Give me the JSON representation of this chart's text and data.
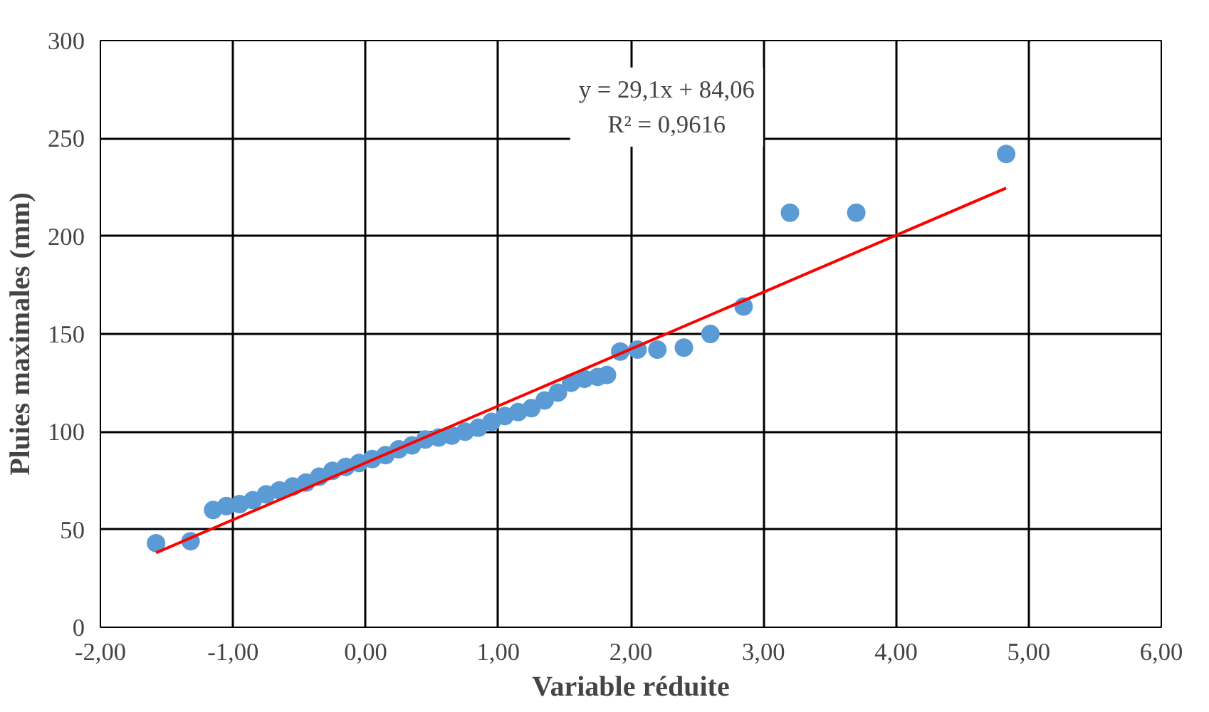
{
  "chart_data": {
    "type": "scatter",
    "xlabel": "Variable réduite",
    "ylabel": "Pluies maximales (mm)",
    "xlim": [
      -2,
      6
    ],
    "ylim": [
      0,
      300
    ],
    "xticks": [
      {
        "value": -2,
        "label": "-2,00"
      },
      {
        "value": -1,
        "label": "-1,00"
      },
      {
        "value": 0,
        "label": "0,00"
      },
      {
        "value": 1,
        "label": "1,00"
      },
      {
        "value": 2,
        "label": "2,00"
      },
      {
        "value": 3,
        "label": "3,00"
      },
      {
        "value": 4,
        "label": "4,00"
      },
      {
        "value": 5,
        "label": "5,00"
      },
      {
        "value": 6,
        "label": "6,00"
      }
    ],
    "yticks": [
      0,
      50,
      100,
      150,
      200,
      250,
      300
    ],
    "grid": true,
    "marker": "circle",
    "annotations": [
      "y = 29,1x + 84,06",
      "R² = 0,9616"
    ],
    "series": [
      {
        "color": "#5b9bd5",
        "x": [
          -1.58,
          -1.32,
          -1.15,
          -1.05,
          -0.95,
          -0.85,
          -0.75,
          -0.65,
          -0.55,
          -0.45,
          -0.35,
          -0.25,
          -0.15,
          -0.05,
          0.05,
          0.15,
          0.25,
          0.35,
          0.45,
          0.55,
          0.65,
          0.75,
          0.85,
          0.95,
          1.05,
          1.15,
          1.25,
          1.35,
          1.45,
          1.55,
          1.65,
          1.75,
          1.82,
          1.92,
          2.05,
          2.2,
          2.4,
          2.6,
          2.85,
          3.2,
          3.7,
          4.83
        ],
        "values": [
          43,
          44,
          60,
          62,
          63,
          65,
          68,
          70,
          72,
          74,
          77,
          80,
          82,
          84,
          86,
          88,
          91,
          93,
          96,
          97,
          98,
          100,
          102,
          105,
          108,
          110,
          112,
          116,
          120,
          125,
          127,
          128,
          129,
          141,
          142,
          142,
          143,
          150,
          164,
          212,
          212,
          242
        ]
      },
      {
        "type": "line",
        "marker": "none",
        "color": "#ff0000",
        "x": [
          -1.58,
          4.83
        ],
        "values": [
          38.1,
          224.6
        ]
      }
    ]
  }
}
